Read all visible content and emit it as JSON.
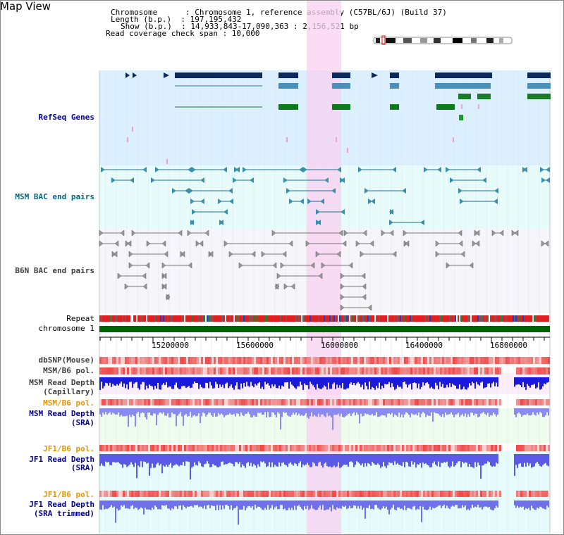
{
  "title": "Map View",
  "header": {
    "line1": "Chromosome      : Chromosome 1, reference assembly (C57BL/6J) (Build 37)",
    "line2": "Length (b.p.)  : 197,195,432",
    "line3": "Show (b.p.)  : 14,933,843-17,090,363 : 2,156,521 bp",
    "line4": "Read coverage check span : 10,000"
  },
  "tracks": {
    "refseq": "RefSeq Genes",
    "msm_bac": "MSM BAC end pairs",
    "b6n_bac": "B6N BAC end pairs",
    "repeat": "Repeat",
    "chromosome": "chromosome 1",
    "dbsnp": "dbSNP(Mouse)",
    "msm_b6_pol1": "MSM/B6 pol.",
    "msm_depth_cap": "MSM Read Depth",
    "msm_depth_cap2": "(Capillary)",
    "msm_b6_pol2": "MSM/B6 pol.",
    "msm_depth_sra": "MSM Read Depth",
    "msm_depth_sra2": "(SRA)",
    "jf1_pol1": "JF1/B6 pol.",
    "jf1_depth": "JF1 Read Depth",
    "jf1_depth2": "(SRA)",
    "jf1_pol2": "JF1/B6 pol.",
    "jf1_depth_trim": "JF1 Read Depth",
    "jf1_depth_trim2": "(SRA trimmed)"
  },
  "axis": {
    "ticks": [
      "15200000",
      "15600000",
      "16000000",
      "16400000",
      "16800000"
    ]
  },
  "colors": {
    "refseq_bg": "#dcefff",
    "bac_bg": "#e8fbfb",
    "highlight": "#f8d8f4",
    "label_blue": "#00008b",
    "label_orange": "#e69500",
    "label_teal": "#006b7d",
    "label_gray": "#404040"
  }
}
